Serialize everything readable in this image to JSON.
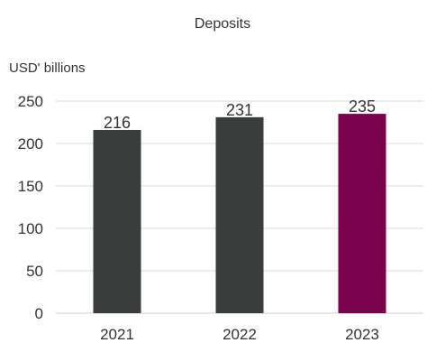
{
  "chart_data": {
    "type": "bar",
    "title": "Deposits",
    "unit_label": "USD' billions",
    "categories": [
      "2021",
      "2022",
      "2023"
    ],
    "values": [
      216,
      231,
      235
    ],
    "value_labels": [
      "216",
      "231",
      "235"
    ],
    "colors": [
      "#3a3d3c",
      "#3a3d3c",
      "#7a0049"
    ],
    "ylim": [
      0,
      250
    ],
    "yticks": [
      0,
      50,
      100,
      150,
      200,
      250
    ],
    "ytick_labels": [
      "0",
      "50",
      "100",
      "150",
      "200",
      "250"
    ],
    "grid": true,
    "legend": "none",
    "xlabel": "",
    "ylabel": ""
  }
}
